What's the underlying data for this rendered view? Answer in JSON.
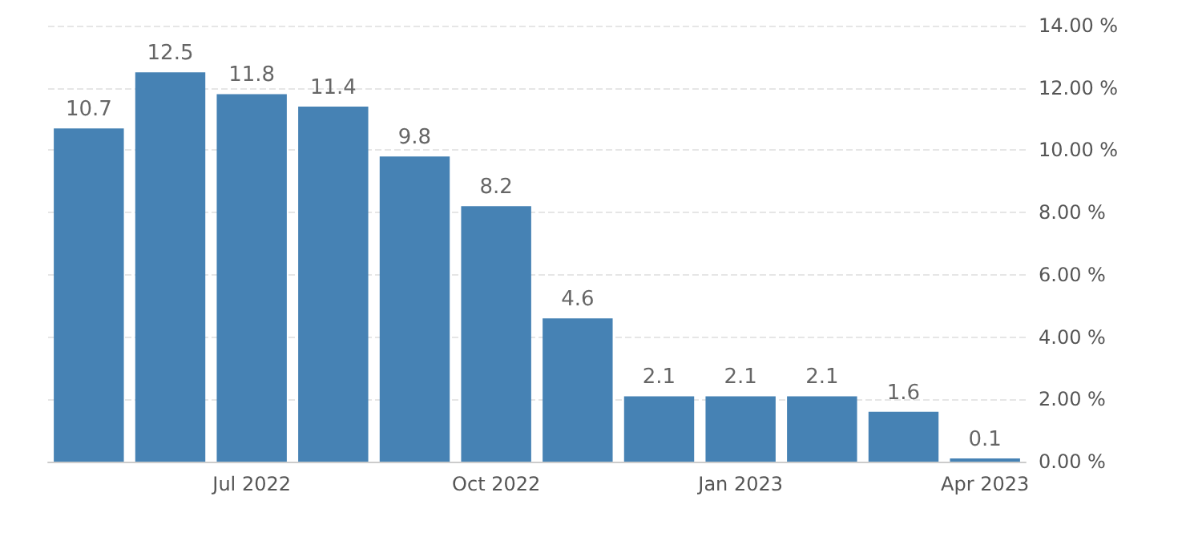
{
  "chart_data": {
    "type": "bar",
    "categories": [
      null,
      null,
      "Jul 2022",
      null,
      null,
      "Oct 2022",
      null,
      null,
      "Jan 2023",
      null,
      null,
      "Apr 2023"
    ],
    "values": [
      10.7,
      12.5,
      11.8,
      11.4,
      9.8,
      8.2,
      4.6,
      2.1,
      2.1,
      2.1,
      1.6,
      0.1
    ],
    "color": "#4682b4",
    "ylim": [
      0,
      14
    ],
    "yticks": [
      {
        "value": 0,
        "label": "0.00 %"
      },
      {
        "value": 2,
        "label": "2.00 %"
      },
      {
        "value": 4,
        "label": "4.00 %"
      },
      {
        "value": 6,
        "label": "6.00 %"
      },
      {
        "value": 8,
        "label": "8.00 %"
      },
      {
        "value": 10,
        "label": "10.00 %"
      },
      {
        "value": 12,
        "label": "12.00 %"
      },
      {
        "value": 14,
        "label": "14.00 %"
      }
    ],
    "grid": "y",
    "data_labels": true
  }
}
